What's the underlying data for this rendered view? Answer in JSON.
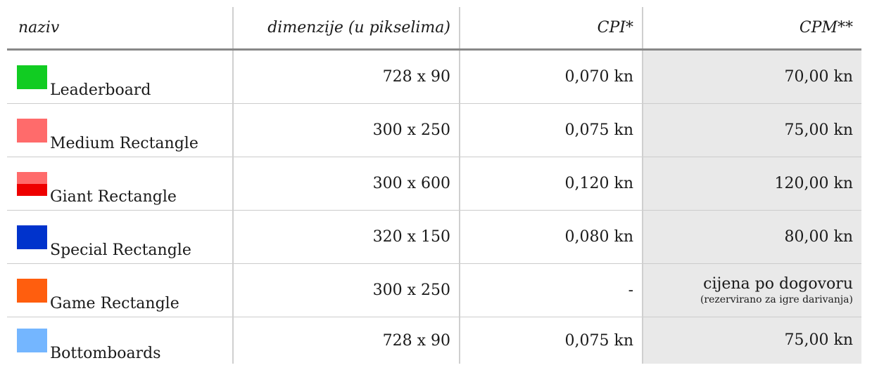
{
  "header": {
    "naziv": "naziv",
    "dimenzije": "dimenzije (u pikselima)",
    "cpi": "CPI*",
    "cpm": "CPM**"
  },
  "rows": [
    {
      "name": "Leaderboard",
      "dimensions": "728 x 90",
      "cpi": "0,070 kn",
      "cpm": "70,00 kn",
      "note": "",
      "color": "#11cc22"
    },
    {
      "name": "Medium Rectangle",
      "dimensions": "300 x 250",
      "cpi": "0,075 kn",
      "cpm": "75,00 kn",
      "note": "",
      "color": "#ff6b6b"
    },
    {
      "name": "Giant Rectangle",
      "dimensions": "300 x 600",
      "cpi": "0,120 kn",
      "cpm": "120,00 kn",
      "note": "",
      "color_top": "#ff6b6b",
      "color_bottom": "#ee0000"
    },
    {
      "name": "Special Rectangle",
      "dimensions": "320 x 150",
      "cpi": "0,080 kn",
      "cpm": "80,00 kn",
      "note": "",
      "color": "#0033cc"
    },
    {
      "name": "Game Rectangle",
      "dimensions": "300 x 250",
      "cpi": "-",
      "cpm": "cijena po dogovoru",
      "note": "(rezervirano za igre darivanja)",
      "color": "#ff5e0e"
    },
    {
      "name": "Bottomboards",
      "dimensions": "728 x 90",
      "cpi": "0,075 kn",
      "cpm": "75,00 kn",
      "note": "",
      "color": "#74b6ff"
    }
  ]
}
